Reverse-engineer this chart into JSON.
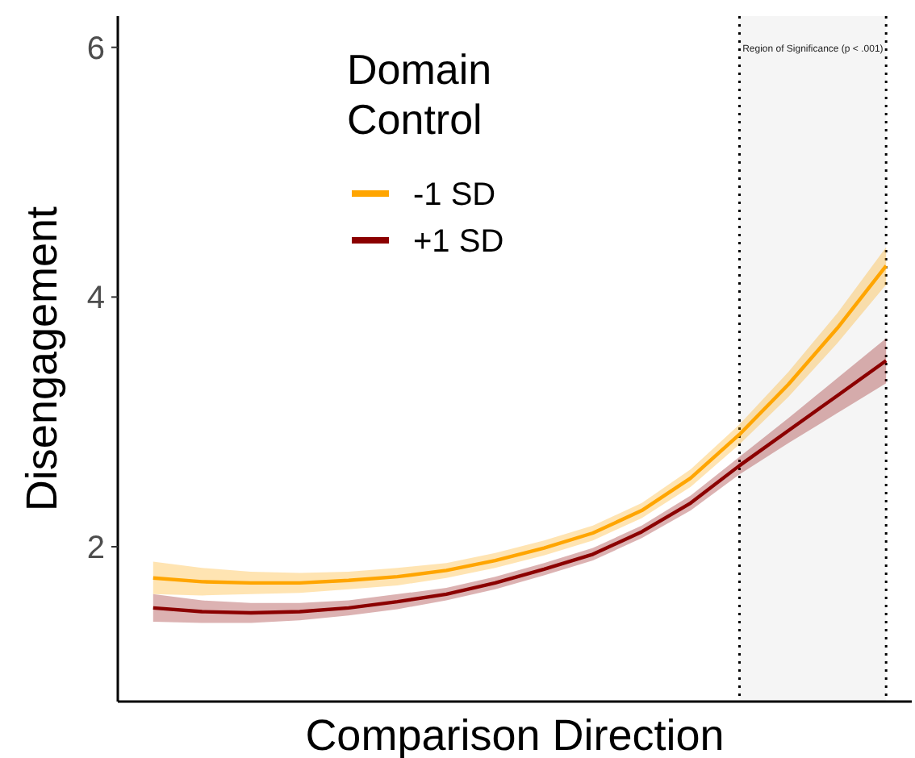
{
  "chart_data": {
    "type": "line",
    "xlabel": "Comparison Direction",
    "ylabel": "Disengagement",
    "legend_title": "Domain Control",
    "categories": [
      null,
      null,
      null,
      null,
      null,
      null,
      null,
      null,
      null,
      null,
      null,
      null,
      null,
      null,
      null,
      null
    ],
    "ylim": [
      0.76,
      6.25
    ],
    "yticks": [
      2,
      4,
      6
    ],
    "grid": false,
    "legend": "top left",
    "marker": "none",
    "line_style": "solid",
    "series": [
      {
        "name": "-1 SD",
        "color": "#ffa500",
        "values": [
          1.75,
          1.72,
          1.71,
          1.71,
          1.73,
          1.76,
          1.81,
          1.89,
          1.99,
          2.11,
          2.29,
          2.55,
          2.9,
          3.3,
          3.75,
          4.25
        ],
        "lower": [
          1.62,
          1.61,
          1.62,
          1.63,
          1.66,
          1.69,
          1.75,
          1.83,
          1.93,
          2.05,
          2.23,
          2.48,
          2.82,
          3.2,
          3.63,
          4.1
        ],
        "upper": [
          1.88,
          1.83,
          1.8,
          1.79,
          1.8,
          1.83,
          1.87,
          1.95,
          2.05,
          2.17,
          2.35,
          2.62,
          2.98,
          3.4,
          3.87,
          4.4
        ]
      },
      {
        "name": "+1 SD",
        "color": "#8b0000",
        "values": [
          1.51,
          1.48,
          1.47,
          1.48,
          1.51,
          1.56,
          1.62,
          1.71,
          1.82,
          1.94,
          2.12,
          2.35,
          2.65,
          2.93,
          3.21,
          3.49
        ],
        "lower": [
          1.4,
          1.39,
          1.39,
          1.41,
          1.45,
          1.5,
          1.57,
          1.66,
          1.77,
          1.89,
          2.07,
          2.29,
          2.58,
          2.83,
          3.07,
          3.31
        ],
        "upper": [
          1.62,
          1.57,
          1.55,
          1.55,
          1.57,
          1.62,
          1.67,
          1.76,
          1.87,
          1.99,
          2.17,
          2.41,
          2.72,
          3.03,
          3.35,
          3.67
        ]
      }
    ],
    "annotations": [
      "Region of Significance (p < .001)"
    ]
  }
}
